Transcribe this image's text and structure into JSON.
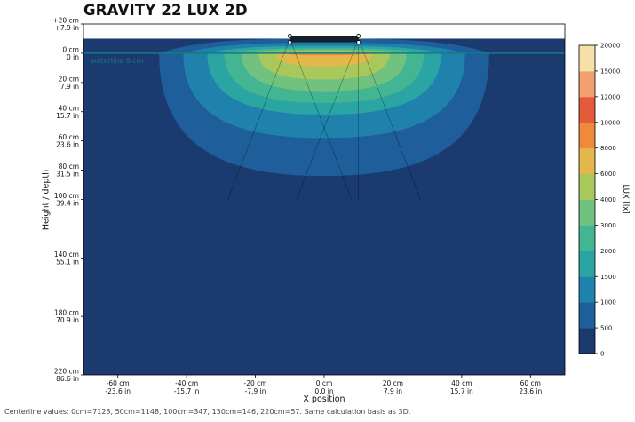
{
  "chart_data": {
    "type": "heatmap",
    "title": "GRAVITY 22 LUX 2D",
    "xlabel": "X position",
    "ylabel": "Height / depth",
    "colorbar_label": "LUX [lx]",
    "x_ticks": [
      {
        "cm": "-60 cm",
        "inch": "-23.6 in",
        "value": -60
      },
      {
        "cm": "-40 cm",
        "inch": "-15.7 in",
        "value": -40
      },
      {
        "cm": "-20 cm",
        "inch": "-7.9 in",
        "value": -20
      },
      {
        "cm": "0 cm",
        "inch": "0.0 in",
        "value": 0
      },
      {
        "cm": "20 cm",
        "inch": "7.9 in",
        "value": 20
      },
      {
        "cm": "40 cm",
        "inch": "15.7 in",
        "value": 40
      },
      {
        "cm": "60 cm",
        "inch": "23.6 in",
        "value": 60
      }
    ],
    "y_ticks": [
      {
        "cm": "+20 cm",
        "inch": "+7.9 in",
        "value": -20
      },
      {
        "cm": "0 cm",
        "inch": "0 in",
        "value": 0
      },
      {
        "cm": "20 cm",
        "inch": "7.9 in",
        "value": 20
      },
      {
        "cm": "40 cm",
        "inch": "15.7 in",
        "value": 40
      },
      {
        "cm": "60 cm",
        "inch": "23.6 in",
        "value": 60
      },
      {
        "cm": "80 cm",
        "inch": "31.5 in",
        "value": 80
      },
      {
        "cm": "100 cm",
        "inch": "39.4 in",
        "value": 100
      },
      {
        "cm": "140 cm",
        "inch": "55.1 in",
        "value": 140
      },
      {
        "cm": "180 cm",
        "inch": "70.9 in",
        "value": 180
      },
      {
        "cm": "220 cm",
        "inch": "86.6 in",
        "value": 220
      }
    ],
    "colorbar_levels": [
      0,
      500,
      1000,
      1500,
      2000,
      3000,
      4000,
      6000,
      8000,
      10000,
      12000,
      15000,
      20000
    ],
    "colorbar_tick_labels": [
      "0",
      "500",
      "1000",
      "1500",
      "2000",
      "3000",
      "4000",
      "6000",
      "8000",
      "10000",
      "12000",
      "15000",
      "20000"
    ],
    "colorbar_colors": [
      "#1b3b70",
      "#1e5e9a",
      "#1f82ac",
      "#2aa5a4",
      "#43b592",
      "#71c27f",
      "#a8c85c",
      "#e2b84a",
      "#ef8a3c",
      "#e65a3c",
      "#f2a070",
      "#f7dfa8"
    ],
    "background_color": "#1b3b70",
    "waterline_label": "waterline 0 cm",
    "waterline_color": "#157a7e",
    "fixture_x_range_cm": [
      -10,
      10
    ],
    "fixture_height_cm": 10,
    "contours": [
      {
        "level": 500,
        "x_half_width_cm": 48,
        "top_cm": 10,
        "bottom_cm": 84
      },
      {
        "level": 1000,
        "x_half_width_cm": 41,
        "top_cm": 7,
        "bottom_cm": 58
      },
      {
        "level": 1500,
        "x_half_width_cm": 34,
        "top_cm": 5,
        "bottom_cm": 42
      },
      {
        "level": 2000,
        "x_half_width_cm": 29,
        "top_cm": 3.5,
        "bottom_cm": 34
      },
      {
        "level": 3000,
        "x_half_width_cm": 24,
        "top_cm": 2.5,
        "bottom_cm": 26
      },
      {
        "level": 4000,
        "x_half_width_cm": 19,
        "top_cm": 1.5,
        "bottom_cm": 18
      },
      {
        "level": 6000,
        "x_half_width_cm": 14,
        "top_cm": 1,
        "bottom_cm": 9
      },
      {
        "level": 8000,
        "x_half_width_cm": 11,
        "top_cm": 0.5,
        "bottom_cm": 1.5
      }
    ],
    "centerline_values": [
      {
        "depth_cm": 0,
        "lux": 7123
      },
      {
        "depth_cm": 50,
        "lux": 1148
      },
      {
        "depth_cm": 100,
        "lux": 347
      },
      {
        "depth_cm": 150,
        "lux": 146
      },
      {
        "depth_cm": 220,
        "lux": 57
      }
    ],
    "xlim": [
      -70,
      70
    ],
    "ylim": [
      -20,
      220
    ]
  },
  "footer_note": "Centerline values: 0cm=7123, 50cm=1148, 100cm=347, 150cm=146, 220cm=57. Same calculation basis as 3D."
}
